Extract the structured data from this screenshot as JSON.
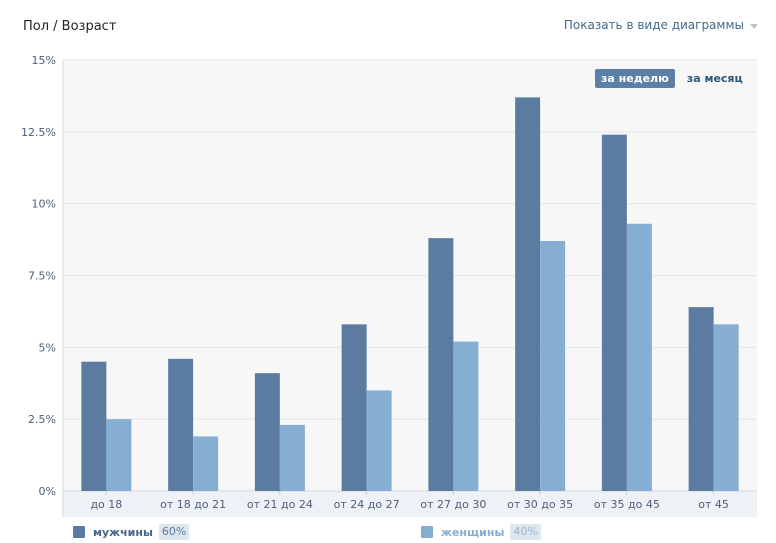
{
  "header": {
    "title": "Пол / Возраст",
    "view_toggle_label": "Показать в виде диаграммы"
  },
  "period_tabs": [
    {
      "label": "за неделю",
      "active": true
    },
    {
      "label": "за месяц",
      "active": false
    }
  ],
  "colors": {
    "plot_bg": "#f7f7f7",
    "grid": "#e4e6e9",
    "axis_text": "#4c607b",
    "men": "#5b7ba1",
    "women": "#86aed2"
  },
  "legend": [
    {
      "label": "мужчины",
      "percent": "60%",
      "color": "#5b7ba1",
      "label_color": "#44678e",
      "pct_color": "#5b7ba1"
    },
    {
      "label": "женщины",
      "percent": "40%",
      "color": "#86aed2",
      "label_color": "#86aed2",
      "pct_color": "#9bb7d1"
    }
  ],
  "chart_data": {
    "type": "bar",
    "title": "",
    "xlabel": "",
    "ylabel": "",
    "ylim": [
      0,
      15
    ],
    "y_ticks": [
      0,
      2.5,
      5,
      7.5,
      10,
      12.5,
      15
    ],
    "y_tick_labels": [
      "0%",
      "2.5%",
      "5%",
      "7.5%",
      "10%",
      "12.5%",
      "15%"
    ],
    "categories": [
      "до 18",
      "от 18 до 21",
      "от 21 до 24",
      "от 24 до 27",
      "от 27 до 30",
      "от 30 до 35",
      "от 35 до 45",
      "от 45"
    ],
    "series": [
      {
        "name": "мужчины",
        "values": [
          4.5,
          4.6,
          4.1,
          5.8,
          8.8,
          13.7,
          12.4,
          6.4
        ]
      },
      {
        "name": "женщины",
        "values": [
          2.5,
          1.9,
          2.3,
          3.5,
          5.2,
          8.7,
          9.3,
          5.8
        ]
      }
    ],
    "legend_position": "bottom",
    "grid": true
  }
}
